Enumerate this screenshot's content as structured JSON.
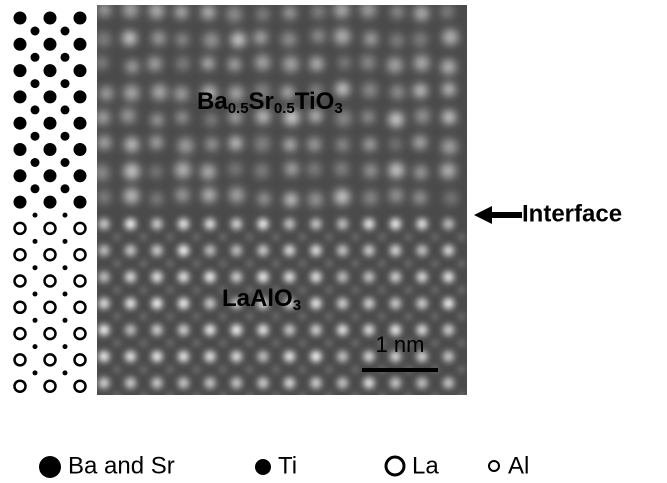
{
  "figure": {
    "film_label": {
      "parts": [
        "Ba",
        "0.5",
        "Sr",
        "0.5",
        "TiO",
        "3"
      ]
    },
    "substrate_label": {
      "parts": [
        "LaAlO",
        "3"
      ]
    },
    "interface_label": "Interface",
    "scale_bar_label": "1 nm",
    "legend": [
      "Ba and Sr",
      "Ti",
      "La",
      "Al"
    ]
  }
}
